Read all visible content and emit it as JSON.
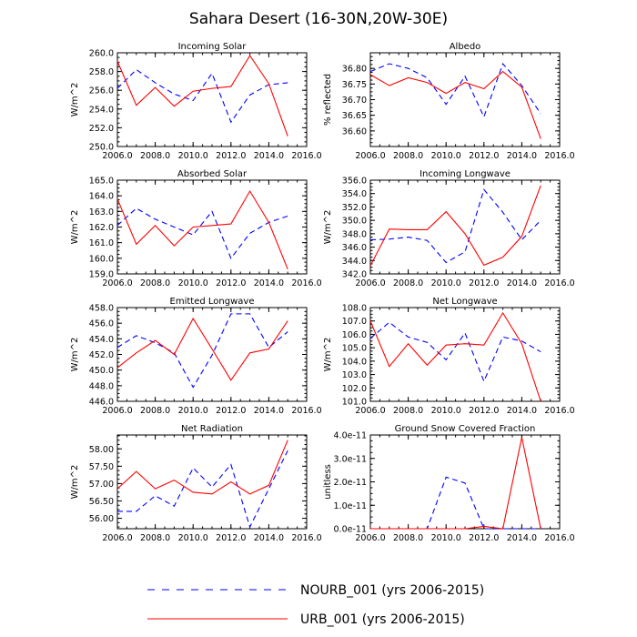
{
  "title": "Sahara Desert (16-30N,20W-30E)",
  "colors": {
    "nourb": "#0000ff",
    "urb": "#ff0000",
    "axis": "#000000"
  },
  "legend": [
    {
      "series": "NOURB_001",
      "label": "NOURB_001 (yrs 2006-2015)",
      "style": "dashed",
      "color": "#0000ff"
    },
    {
      "series": "URB_001",
      "label": "URB_001 (yrs 2006-2015)",
      "style": "solid",
      "color": "#ff0000"
    }
  ],
  "chart_data": [
    {
      "type": "line",
      "title": "Incoming Solar",
      "ylabel": "W/m^2",
      "xlim": [
        2006,
        2016
      ],
      "xticks": [
        "2006.0",
        "2008.0",
        "2010.0",
        "2012.0",
        "2014.0",
        "2016.0"
      ],
      "ylim": [
        250,
        260
      ],
      "yticks": [
        [
          250,
          "250.0"
        ],
        [
          252,
          "252.0"
        ],
        [
          254,
          "254.0"
        ],
        [
          256,
          "256.0"
        ],
        [
          258,
          "258.0"
        ],
        [
          260,
          "260.0"
        ]
      ],
      "x": [
        2006,
        2007,
        2008,
        2009,
        2010,
        2011,
        2012,
        2013,
        2014,
        2015
      ],
      "series": [
        {
          "name": "NOURB_001",
          "values": [
            256.2,
            258.2,
            256.8,
            255.6,
            254.9,
            257.8,
            252.6,
            255.5,
            256.6,
            256.8
          ]
        },
        {
          "name": "URB_001",
          "values": [
            259.1,
            254.4,
            256.3,
            254.3,
            255.9,
            256.2,
            256.4,
            259.7,
            256.7,
            251.1
          ]
        }
      ]
    },
    {
      "type": "line",
      "title": "Albedo",
      "ylabel": "% reflected",
      "xlim": [
        2006,
        2016
      ],
      "xticks": [
        "2006.0",
        "2008.0",
        "2010.0",
        "2012.0",
        "2014.0",
        "2016.0"
      ],
      "ylim": [
        36.55,
        36.85
      ],
      "yticks": [
        [
          36.6,
          "36.60"
        ],
        [
          36.65,
          "36.65"
        ],
        [
          36.7,
          "36.70"
        ],
        [
          36.75,
          "36.75"
        ],
        [
          36.8,
          "36.80"
        ]
      ],
      "x": [
        2006,
        2007,
        2008,
        2009,
        2010,
        2011,
        2012,
        2013,
        2014,
        2015
      ],
      "series": [
        {
          "name": "NOURB_001",
          "values": [
            36.79,
            36.815,
            36.8,
            36.77,
            36.685,
            36.775,
            36.645,
            36.815,
            36.745,
            36.655
          ]
        },
        {
          "name": "URB_001",
          "values": [
            36.78,
            36.745,
            36.77,
            36.755,
            36.72,
            36.755,
            36.735,
            36.79,
            36.74,
            36.575
          ]
        }
      ]
    },
    {
      "type": "line",
      "title": "Absorbed Solar",
      "ylabel": "W/m^2",
      "xlim": [
        2006,
        2016
      ],
      "xticks": [
        "2006.0",
        "2008.0",
        "2010.0",
        "2012.0",
        "2014.0",
        "2016.0"
      ],
      "ylim": [
        159,
        165
      ],
      "yticks": [
        [
          159,
          "159.0"
        ],
        [
          160,
          "160.0"
        ],
        [
          161,
          "161.0"
        ],
        [
          162,
          "162.0"
        ],
        [
          163,
          "163.0"
        ],
        [
          164,
          "164.0"
        ],
        [
          165,
          "165.0"
        ]
      ],
      "x": [
        2006,
        2007,
        2008,
        2009,
        2010,
        2011,
        2012,
        2013,
        2014,
        2015
      ],
      "series": [
        {
          "name": "NOURB_001",
          "values": [
            162.1,
            163.2,
            162.5,
            162.0,
            161.5,
            163.0,
            160.0,
            161.6,
            162.3,
            162.7
          ]
        },
        {
          "name": "URB_001",
          "values": [
            163.8,
            160.9,
            162.1,
            160.8,
            162.0,
            162.1,
            162.2,
            164.3,
            162.3,
            159.3
          ]
        }
      ]
    },
    {
      "type": "line",
      "title": "Incoming Longwave",
      "ylabel": "W/m^2",
      "xlim": [
        2006,
        2016
      ],
      "xticks": [
        "2006.0",
        "2008.0",
        "2010.0",
        "2012.0",
        "2014.0",
        "2016.0"
      ],
      "ylim": [
        342,
        356
      ],
      "yticks": [
        [
          342,
          "342.0"
        ],
        [
          344,
          "344.0"
        ],
        [
          346,
          "346.0"
        ],
        [
          348,
          "348.0"
        ],
        [
          350,
          "350.0"
        ],
        [
          352,
          "352.0"
        ],
        [
          354,
          "354.0"
        ],
        [
          356,
          "356.0"
        ]
      ],
      "x": [
        2006,
        2007,
        2008,
        2009,
        2010,
        2011,
        2012,
        2013,
        2014,
        2015
      ],
      "series": [
        {
          "name": "NOURB_001",
          "values": [
            347.1,
            347.2,
            347.5,
            347.0,
            343.7,
            345.3,
            354.6,
            351.2,
            347.1,
            350.0
          ]
        },
        {
          "name": "URB_001",
          "values": [
            343.2,
            348.7,
            348.6,
            348.6,
            351.3,
            348.0,
            343.3,
            344.5,
            347.6,
            355.2
          ]
        }
      ]
    },
    {
      "type": "line",
      "title": "Emitted Longwave",
      "ylabel": "W/m^2",
      "xlim": [
        2006,
        2016
      ],
      "xticks": [
        "2006.0",
        "2008.0",
        "2010.0",
        "2012.0",
        "2014.0",
        "2016.0"
      ],
      "ylim": [
        446,
        458
      ],
      "yticks": [
        [
          446,
          "446.0"
        ],
        [
          448,
          "448.0"
        ],
        [
          450,
          "450.0"
        ],
        [
          452,
          "452.0"
        ],
        [
          454,
          "454.0"
        ],
        [
          456,
          "456.0"
        ],
        [
          458,
          "458.0"
        ]
      ],
      "x": [
        2006,
        2007,
        2008,
        2009,
        2010,
        2011,
        2012,
        2013,
        2014,
        2015
      ],
      "series": [
        {
          "name": "NOURB_001",
          "values": [
            452.9,
            454.4,
            453.5,
            452.2,
            447.8,
            451.9,
            457.2,
            457.2,
            452.9,
            454.9
          ]
        },
        {
          "name": "URB_001",
          "values": [
            450.3,
            452.2,
            453.8,
            452.0,
            456.6,
            452.7,
            448.7,
            452.2,
            452.7,
            456.3
          ]
        }
      ]
    },
    {
      "type": "line",
      "title": "Net Longwave",
      "ylabel": "W/m^2",
      "xlim": [
        2006,
        2016
      ],
      "xticks": [
        "2006.0",
        "2008.0",
        "2010.0",
        "2012.0",
        "2014.0",
        "2016.0"
      ],
      "ylim": [
        101,
        108
      ],
      "yticks": [
        [
          101,
          "101.0"
        ],
        [
          102,
          "102.0"
        ],
        [
          103,
          "103.0"
        ],
        [
          104,
          "104.0"
        ],
        [
          105,
          "105.0"
        ],
        [
          106,
          "106.0"
        ],
        [
          107,
          "107.0"
        ],
        [
          108,
          "108.0"
        ]
      ],
      "x": [
        2006,
        2007,
        2008,
        2009,
        2010,
        2011,
        2012,
        2013,
        2014,
        2015
      ],
      "series": [
        {
          "name": "NOURB_001",
          "values": [
            105.7,
            106.9,
            105.8,
            105.4,
            104.1,
            106.1,
            102.5,
            105.8,
            105.5,
            104.7
          ]
        },
        {
          "name": "URB_001",
          "values": [
            107.0,
            103.6,
            105.3,
            103.7,
            105.2,
            105.3,
            105.2,
            107.6,
            105.3,
            101.0
          ]
        }
      ]
    },
    {
      "type": "line",
      "title": "Net Radiation",
      "ylabel": "W/m^2",
      "xlim": [
        2006,
        2016
      ],
      "xticks": [
        "2006.0",
        "2008.0",
        "2010.0",
        "2012.0",
        "2014.0",
        "2016.0"
      ],
      "ylim": [
        55.7,
        58.4
      ],
      "yticks": [
        [
          56,
          "56.00"
        ],
        [
          56.5,
          "56.50"
        ],
        [
          57,
          "57.00"
        ],
        [
          57.5,
          "57.50"
        ],
        [
          58,
          "58.00"
        ]
      ],
      "x": [
        2006,
        2007,
        2008,
        2009,
        2010,
        2011,
        2012,
        2013,
        2014,
        2015
      ],
      "series": [
        {
          "name": "NOURB_001",
          "values": [
            56.2,
            56.2,
            56.65,
            56.35,
            57.45,
            56.9,
            57.55,
            55.75,
            56.85,
            57.95
          ]
        },
        {
          "name": "URB_001",
          "values": [
            56.85,
            57.35,
            56.85,
            57.1,
            56.75,
            56.7,
            57.05,
            56.7,
            56.95,
            58.25
          ]
        }
      ]
    },
    {
      "type": "line",
      "title": "Ground Snow Covered Fraction",
      "ylabel": "unitless",
      "xlim": [
        2006,
        2016
      ],
      "xticks": [
        "2006.0",
        "2008.0",
        "2010.0",
        "2012.0",
        "2014.0",
        "2016.0"
      ],
      "ylim": [
        0,
        4e-11
      ],
      "yticks": [
        [
          0,
          "0.0e-11"
        ],
        [
          1e-11,
          "1.0e-11"
        ],
        [
          2e-11,
          "2.0e-11"
        ],
        [
          3e-11,
          "3.0e-11"
        ],
        [
          4e-11,
          "4.0e-11"
        ]
      ],
      "x": [
        2006,
        2007,
        2008,
        2009,
        2010,
        2011,
        2012,
        2013,
        2014,
        2015
      ],
      "series": [
        {
          "name": "NOURB_001",
          "values": [
            0,
            0,
            0,
            0,
            2.2e-11,
            1.95e-11,
            0,
            0,
            0,
            0
          ]
        },
        {
          "name": "URB_001",
          "values": [
            0,
            0,
            0,
            0,
            0,
            0,
            1e-12,
            0,
            3.9e-11,
            0
          ]
        }
      ]
    }
  ]
}
